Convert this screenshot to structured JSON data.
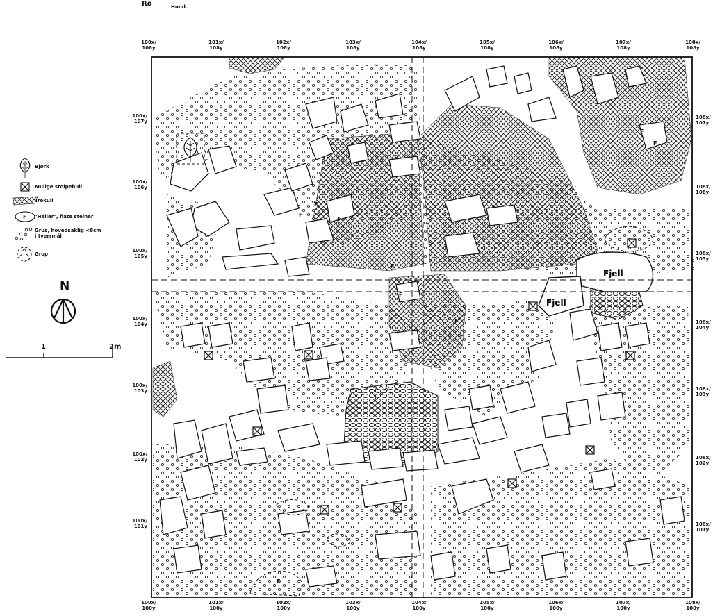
{
  "sheet": {
    "label": "Rø",
    "sub": "Hund."
  },
  "grid": {
    "top": [
      {
        "x": "100x/",
        "y": "108y"
      },
      {
        "x": "101x/",
        "y": "108y"
      },
      {
        "x": "102x/",
        "y": "108y"
      },
      {
        "x": "103x/",
        "y": "108y"
      },
      {
        "x": "104x/",
        "y": "108y"
      },
      {
        "x": "105x/",
        "y": "108y"
      },
      {
        "x": "106x/",
        "y": "108y"
      },
      {
        "x": "107x/",
        "y": "108y"
      },
      {
        "x": "108x/",
        "y": "108y"
      }
    ],
    "bottom": [
      {
        "x": "100x/",
        "y": "100y"
      },
      {
        "x": "101x/",
        "y": "100y"
      },
      {
        "x": "102x/",
        "y": "100y"
      },
      {
        "x": "103x/",
        "y": "100y"
      },
      {
        "x": "104x/",
        "y": "100y"
      },
      {
        "x": "105x/",
        "y": "100y"
      },
      {
        "x": "106x/",
        "y": "100y"
      },
      {
        "x": "107x/",
        "y": "100y"
      },
      {
        "x": "108x/",
        "y": "100y"
      }
    ],
    "left": [
      {
        "x": "100x/",
        "y": "107y"
      },
      {
        "x": "100x/",
        "y": "106y"
      },
      {
        "x": "100x/",
        "y": "105y"
      },
      {
        "x": "100x/",
        "y": "104y"
      },
      {
        "x": "100x/",
        "y": "103y"
      },
      {
        "x": "100x/",
        "y": "102y"
      },
      {
        "x": "100x/",
        "y": "101y"
      }
    ],
    "right": [
      {
        "x": "108x/",
        "y": "107y"
      },
      {
        "x": "108x/",
        "y": "106y"
      },
      {
        "x": "108x/",
        "y": "105y"
      },
      {
        "x": "108x/",
        "y": "104y"
      },
      {
        "x": "108x/",
        "y": "103y"
      },
      {
        "x": "108x/",
        "y": "102y"
      },
      {
        "x": "108x/",
        "y": "101y"
      }
    ]
  },
  "legend": [
    {
      "icon": "birch-tree-icon",
      "label": "Bjørk"
    },
    {
      "icon": "post-hole-icon",
      "label": "Mulige stolpehull"
    },
    {
      "icon": "charcoal-hatch-icon",
      "label": "Trekull"
    },
    {
      "icon": "flat-stone-icon",
      "label": "\"Heller\", flate steiner"
    },
    {
      "icon": "gravel-dots-icon",
      "label": "Grus, hovedsaklig <8cm i tverrmål"
    },
    {
      "icon": "pit-icon",
      "label": "Grop"
    }
  ],
  "north": {
    "label": "N"
  },
  "scale": {
    "tick1": "1",
    "tick2": "2m"
  },
  "annotations": {
    "fjell_1": "Fjell",
    "fjell_2": "Fjell",
    "flat_stone_mark": "F"
  }
}
